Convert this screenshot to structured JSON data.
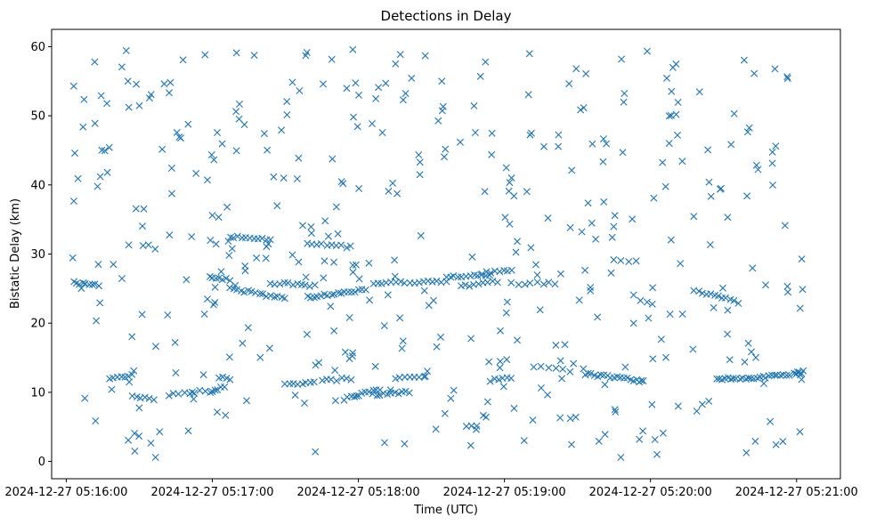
{
  "chart_data": {
    "type": "scatter",
    "title": "Detections in Delay",
    "xlabel": "Time (UTC)",
    "ylabel": "Bistatic Delay (km)",
    "xlim": [
      -0.1,
      5.3
    ],
    "ylim": [
      -2.5,
      62.5
    ],
    "grid": false,
    "marker": "x",
    "color": "#1f77b4",
    "x_ticks": [
      {
        "value": 0,
        "label": "2024-12-27 05:16:00"
      },
      {
        "value": 1,
        "label": "2024-12-27 05:17:00"
      },
      {
        "value": 2,
        "label": "2024-12-27 05:18:00"
      },
      {
        "value": 3,
        "label": "2024-12-27 05:19:00"
      },
      {
        "value": 4,
        "label": "2024-12-27 05:20:00"
      },
      {
        "value": 5,
        "label": "2024-12-27 05:21:00"
      }
    ],
    "y_ticks": [
      {
        "value": 0,
        "label": "0"
      },
      {
        "value": 10,
        "label": "10"
      },
      {
        "value": 20,
        "label": "20"
      },
      {
        "value": 30,
        "label": "30"
      },
      {
        "value": 40,
        "label": "40"
      },
      {
        "value": 50,
        "label": "50"
      },
      {
        "value": 60,
        "label": "60"
      }
    ],
    "tracks": [
      {
        "x0": 0.05,
        "x1": 0.22,
        "y0": 25.9,
        "y1": 25.5,
        "n": 9
      },
      {
        "x0": 0.3,
        "x1": 0.45,
        "y0": 11.9,
        "y1": 12.4,
        "n": 7
      },
      {
        "x0": 0.45,
        "x1": 0.6,
        "y0": 9.4,
        "y1": 9.0,
        "n": 6
      },
      {
        "x0": 0.7,
        "x1": 0.95,
        "y0": 9.7,
        "y1": 10.2,
        "n": 8
      },
      {
        "x0": 0.98,
        "x1": 1.12,
        "y0": 26.8,
        "y1": 26.2,
        "n": 7
      },
      {
        "x0": 1.0,
        "x1": 1.08,
        "y0": 10.3,
        "y1": 10.7,
        "n": 5
      },
      {
        "x0": 1.05,
        "x1": 1.12,
        "y0": 12.1,
        "y1": 12.0,
        "n": 4
      },
      {
        "x0": 1.12,
        "x1": 1.5,
        "y0": 25.0,
        "y1": 23.6,
        "n": 16
      },
      {
        "x0": 1.12,
        "x1": 1.4,
        "y0": 32.5,
        "y1": 32.0,
        "n": 11
      },
      {
        "x0": 1.4,
        "x1": 1.7,
        "y0": 25.8,
        "y1": 25.4,
        "n": 11
      },
      {
        "x0": 1.5,
        "x1": 1.7,
        "y0": 11.1,
        "y1": 11.6,
        "n": 8
      },
      {
        "x0": 1.65,
        "x1": 2.05,
        "y0": 23.8,
        "y1": 24.8,
        "n": 18
      },
      {
        "x0": 1.65,
        "x1": 1.95,
        "y0": 31.5,
        "y1": 31.0,
        "n": 10
      },
      {
        "x0": 1.75,
        "x1": 1.95,
        "y0": 11.7,
        "y1": 12.0,
        "n": 7
      },
      {
        "x0": 1.9,
        "x1": 2.15,
        "y0": 9.0,
        "y1": 10.4,
        "n": 11
      },
      {
        "x0": 2.1,
        "x1": 2.35,
        "y0": 9.6,
        "y1": 10.1,
        "n": 11
      },
      {
        "x0": 2.1,
        "x1": 2.6,
        "y0": 25.7,
        "y1": 26.0,
        "n": 17
      },
      {
        "x0": 2.25,
        "x1": 2.45,
        "y0": 12.0,
        "y1": 12.4,
        "n": 7
      },
      {
        "x0": 2.6,
        "x1": 2.9,
        "y0": 26.6,
        "y1": 27.0,
        "n": 12
      },
      {
        "x0": 2.7,
        "x1": 2.95,
        "y0": 25.3,
        "y1": 26.0,
        "n": 9
      },
      {
        "x0": 2.85,
        "x1": 3.05,
        "y0": 27.2,
        "y1": 27.8,
        "n": 8
      },
      {
        "x0": 2.9,
        "x1": 3.05,
        "y0": 11.7,
        "y1": 12.2,
        "n": 6
      },
      {
        "x0": 3.05,
        "x1": 3.35,
        "y0": 25.7,
        "y1": 25.8,
        "n": 8
      },
      {
        "x0": 3.2,
        "x1": 3.45,
        "y0": 13.8,
        "y1": 13.0,
        "n": 6
      },
      {
        "x0": 3.55,
        "x1": 3.95,
        "y0": 12.7,
        "y1": 11.6,
        "n": 19
      },
      {
        "x0": 3.75,
        "x1": 3.9,
        "y0": 29.0,
        "y1": 28.9,
        "n": 4
      },
      {
        "x0": 4.3,
        "x1": 4.6,
        "y0": 24.8,
        "y1": 23.0,
        "n": 12
      },
      {
        "x0": 4.45,
        "x1": 4.95,
        "y0": 11.8,
        "y1": 12.5,
        "n": 26
      },
      {
        "x0": 4.98,
        "x1": 5.05,
        "y0": 12.7,
        "y1": 13.0,
        "n": 6
      }
    ],
    "clutter": {
      "count": 420,
      "x_range": [
        0.02,
        5.05
      ],
      "y_range": [
        0.5,
        60.0
      ],
      "seed": 20241227
    }
  }
}
